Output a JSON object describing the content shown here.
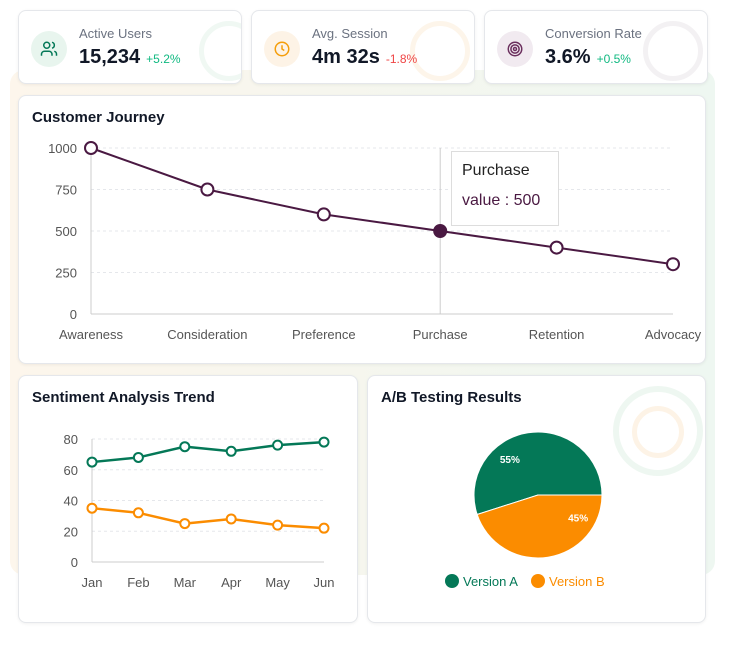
{
  "kpis": [
    {
      "label": "Active Users",
      "value": "15,234",
      "change": "+5.2%",
      "change_color": "#10b981",
      "icon": "users-icon",
      "icon_color": "#047857",
      "icon_bg": "#e8f5ee"
    },
    {
      "label": "Avg. Session",
      "value": "4m 32s",
      "change": "-1.8%",
      "change_color": "#ef4444",
      "icon": "clock-icon",
      "icon_color": "#f59e0b",
      "icon_bg": "#fdf3e6"
    },
    {
      "label": "Conversion Rate",
      "value": "3.6%",
      "change": "+0.5%",
      "change_color": "#10b981",
      "icon": "target-icon",
      "icon_color": "#6b2f5e",
      "icon_bg": "#f1eaf0"
    }
  ],
  "chart_data": [
    {
      "type": "line",
      "title": "Customer Journey",
      "categories": [
        "Awareness",
        "Consideration",
        "Preference",
        "Purchase",
        "Retention",
        "Advocacy"
      ],
      "series": [
        {
          "values": [
            1000,
            750,
            600,
            500,
            400,
            300
          ],
          "color": "#4a1942"
        }
      ],
      "ylim": [
        0,
        1000
      ],
      "yticks": [
        0,
        250,
        500,
        750,
        1000
      ],
      "grid": true,
      "tooltip": {
        "title": "Purchase",
        "label": "value",
        "value": "500"
      }
    },
    {
      "type": "line",
      "title": "Sentiment Analysis Trend",
      "categories": [
        "Jan",
        "Feb",
        "Mar",
        "Apr",
        "May",
        "Jun"
      ],
      "series": [
        {
          "values": [
            65,
            68,
            75,
            72,
            76,
            78
          ],
          "color": "#047857"
        },
        {
          "values": [
            35,
            32,
            25,
            28,
            24,
            22
          ],
          "color": "#fb8c00"
        }
      ],
      "ylim": [
        0,
        80
      ],
      "yticks": [
        0,
        20,
        40,
        60,
        80
      ],
      "grid": true
    },
    {
      "type": "pie",
      "title": "A/B Testing Results",
      "slices": [
        {
          "name": "Version A",
          "value": 55,
          "label": "55%",
          "color": "#047857"
        },
        {
          "name": "Version B",
          "value": 45,
          "label": "45%",
          "color": "#fb8c00"
        }
      ],
      "legend": "bottom"
    }
  ]
}
